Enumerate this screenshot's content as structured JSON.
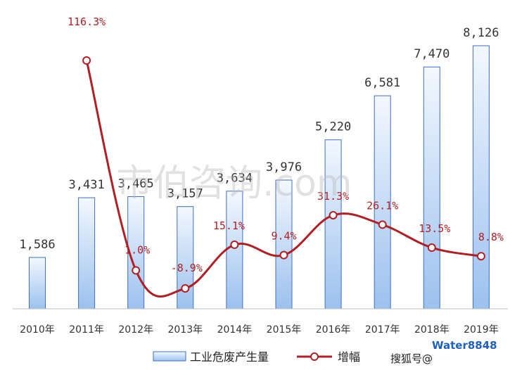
{
  "chart_data": {
    "type": "bar",
    "categories": [
      "2010年",
      "2011年",
      "2012年",
      "2013年",
      "2014年",
      "2015年",
      "2016年",
      "2017年",
      "2018年",
      "2019年"
    ],
    "series": [
      {
        "name": "工业危废产生量",
        "type": "bar",
        "values": [
          1586,
          3431,
          3465,
          3157,
          3634,
          3976,
          5220,
          6581,
          7470,
          8126
        ],
        "labels": [
          "1,586",
          "3,431",
          "3,465",
          "3,157",
          "3,634",
          "3,976",
          "5,220",
          "6,581",
          "7,470",
          "8,126"
        ]
      },
      {
        "name": "增幅",
        "type": "line",
        "values": [
          null,
          116.3,
          1.0,
          -8.9,
          15.1,
          9.4,
          31.3,
          26.1,
          13.5,
          8.8
        ],
        "labels": [
          "",
          "116.3%",
          "1.0%",
          "-8.9%",
          "15.1%",
          "9.4%",
          "31.3%",
          "26.1%",
          "13.5%",
          "8.8%"
        ]
      }
    ],
    "ylim": [
      0,
      9000
    ],
    "y2lim": [
      -20,
      140
    ],
    "grid": false,
    "legend": "bottom",
    "colors": {
      "bar_fill_top": "#f3f8fe",
      "bar_fill_bottom": "#9cc1ee",
      "bar_stroke": "#3d6fc2",
      "line": "#b11f24",
      "axis": "#bfbfbf"
    }
  },
  "watermark": {
    "text": "市伯咨询.com",
    "source": "搜狐号@",
    "logo": "Water8848"
  }
}
